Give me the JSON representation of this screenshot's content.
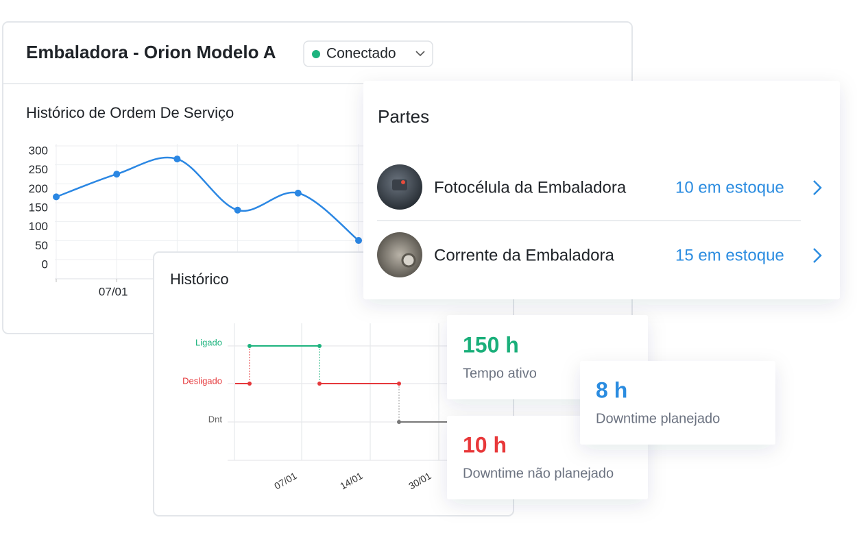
{
  "header": {
    "title": "Embaladora - Orion Modelo A",
    "status": "Conectado"
  },
  "order_history": {
    "type": "line",
    "title": "Histórico de Ordem De Serviço",
    "categories": [
      null,
      "07/01",
      null,
      null,
      null,
      null
    ],
    "values": [
      180,
      240,
      280,
      145,
      190,
      65
    ],
    "ylim": [
      0,
      300
    ],
    "yticks": [
      0,
      50,
      100,
      150,
      200,
      250,
      300
    ],
    "color": "#2b87e3",
    "grid": true
  },
  "history": {
    "title": "Histórico",
    "states": [
      "Ligado",
      "Desligado",
      "Dnt"
    ],
    "xlabels": [
      "07/01",
      "14/01",
      "30/01"
    ]
  },
  "parts": {
    "title": "Partes",
    "items": [
      {
        "name": "Fotocélula da Embaladora",
        "stock": "10 em estoque"
      },
      {
        "name": "Corrente da Embaladora",
        "stock": "15 em estoque"
      }
    ]
  },
  "stats": [
    {
      "value": "150 h",
      "label": "Tempo ativo"
    },
    {
      "value": "8 h",
      "label": "Downtime planejado"
    },
    {
      "value": "10 h",
      "label": "Downtime não planejado"
    }
  ]
}
